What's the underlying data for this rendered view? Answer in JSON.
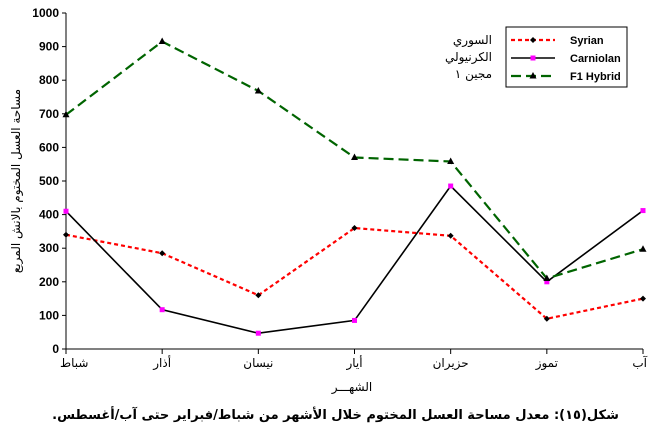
{
  "chart_data": {
    "type": "line",
    "categories": [
      "شباط",
      "أذار",
      "نيسان",
      "أيار",
      "حزيران",
      "تموز",
      "آب"
    ],
    "xlabel": "الشهـــر",
    "ylabel": "مساحة العسل المختوم بالانش المربع",
    "ylim": [
      0,
      1000
    ],
    "yticks": [
      0,
      100,
      200,
      300,
      400,
      500,
      600,
      700,
      800,
      900,
      1000
    ],
    "grid": false,
    "legend_position": "top-right",
    "series": [
      {
        "name": "Syrian",
        "values": [
          340,
          285,
          160,
          360,
          337,
          90,
          150
        ],
        "color": "#ff0000",
        "style": "dotted",
        "marker": "diamond"
      },
      {
        "name": "Carniolan",
        "values": [
          410,
          117,
          47,
          85,
          485,
          200,
          412
        ],
        "color": "#000000",
        "style": "solid",
        "marker": "square"
      },
      {
        "name": "F1 Hybrid",
        "values": [
          697,
          915,
          768,
          570,
          558,
          210,
          297
        ],
        "color": "#006400",
        "style": "dashed",
        "marker": "triangle"
      }
    ],
    "annotation": [
      "السوري",
      "الكرنيولي",
      "مجين ١"
    ]
  },
  "caption": "شكل(١٥): معدل مساحة العسل المختوم خلال الأشهر من شباط/فبراير حتى آب/أغسطس.",
  "colors": {
    "marker_fill": "#ff00ff"
  }
}
